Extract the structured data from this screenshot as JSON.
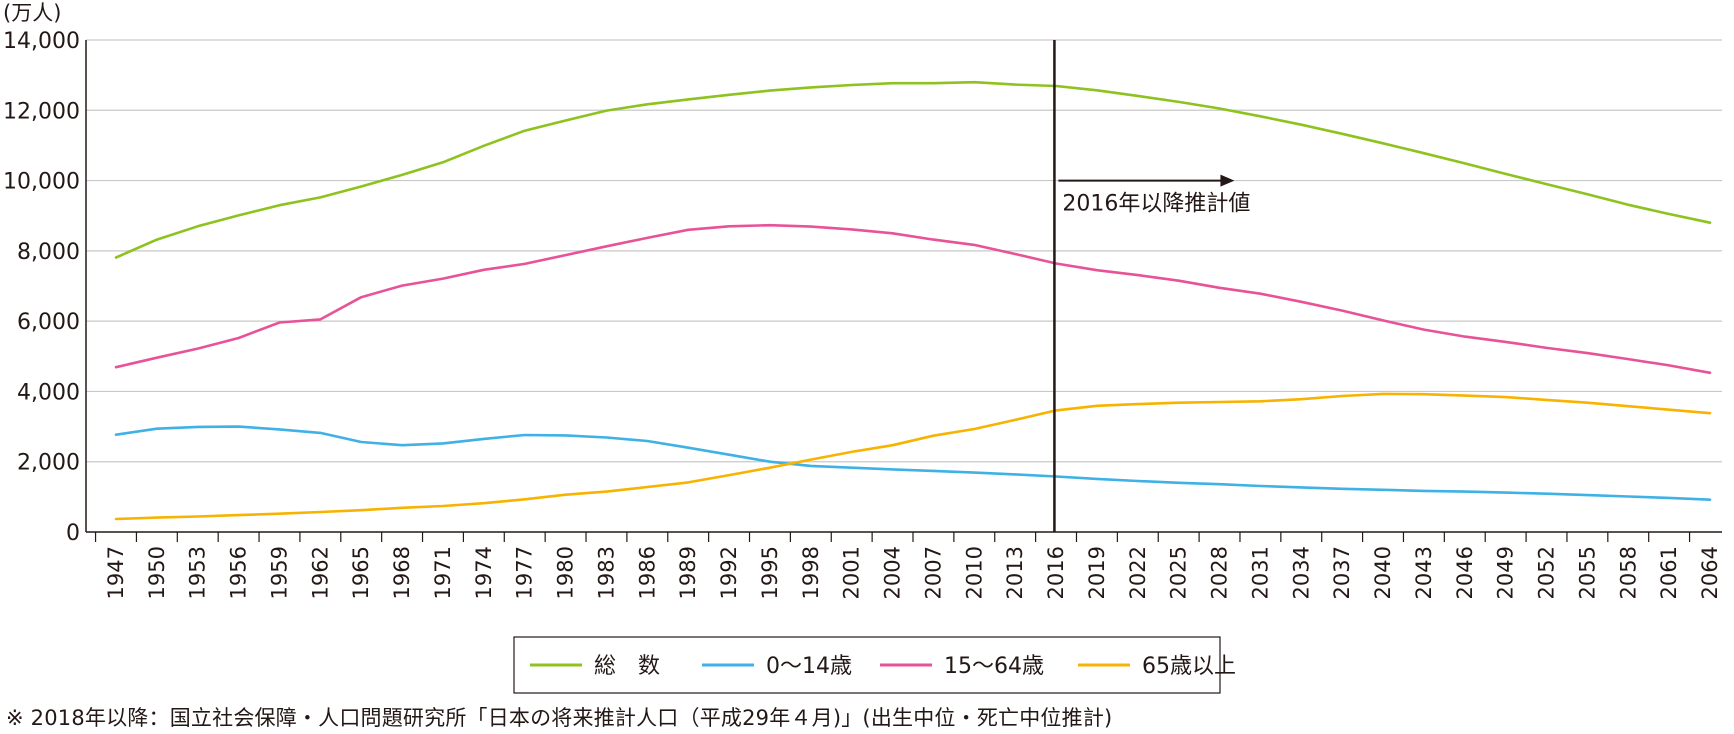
{
  "chart_data": {
    "type": "line",
    "y_unit_label": "(万人)",
    "ylim": [
      0,
      14000
    ],
    "yticks": [
      0,
      2000,
      4000,
      6000,
      8000,
      10000,
      12000,
      14000
    ],
    "ytick_labels": [
      "0",
      "2,000",
      "4,000",
      "6,000",
      "8,000",
      "10,000",
      "12,000",
      "14,000"
    ],
    "xlim": [
      1947,
      2065
    ],
    "xticks": [
      1947,
      1950,
      1953,
      1956,
      1959,
      1962,
      1965,
      1968,
      1971,
      1974,
      1977,
      1980,
      1983,
      1986,
      1989,
      1992,
      1995,
      1998,
      2001,
      2004,
      2007,
      2010,
      2013,
      2016,
      2019,
      2022,
      2025,
      2028,
      2031,
      2034,
      2037,
      2040,
      2043,
      2046,
      2049,
      2052,
      2055,
      2058,
      2061,
      2064
    ],
    "xtick_labels": [
      "1947",
      "1950",
      "1953",
      "1956",
      "1959",
      "1962",
      "1965",
      "1968",
      "1971",
      "1974",
      "1977",
      "1980",
      "1983",
      "1986",
      "1989",
      "1992",
      "1995",
      "1998",
      "2001",
      "2004",
      "2007",
      "2010",
      "2013",
      "2016",
      "2019",
      "2022",
      "2025",
      "2028",
      "2031",
      "2034",
      "2037",
      "2040",
      "2043",
      "2046",
      "2049",
      "2052",
      "2055",
      "2058",
      "2061",
      "2064"
    ],
    "grid": true,
    "legend_position": "bottom-center",
    "projection": {
      "year": 2015,
      "label": "2016年以降推計値"
    },
    "x": [
      1947,
      1950,
      1953,
      1956,
      1959,
      1962,
      1965,
      1968,
      1971,
      1974,
      1977,
      1980,
      1983,
      1986,
      1989,
      1992,
      1995,
      1998,
      2001,
      2004,
      2007,
      2010,
      2013,
      2016,
      2019,
      2022,
      2025,
      2028,
      2031,
      2034,
      2037,
      2040,
      2043,
      2046,
      2049,
      2052,
      2055,
      2058,
      2061,
      2064
    ],
    "series": [
      {
        "name": "総　数",
        "color": "#8dc21f",
        "values": [
          7810,
          8320,
          8700,
          9010,
          9300,
          9520,
          9830,
          10160,
          10520,
          10990,
          11420,
          11710,
          11990,
          12170,
          12310,
          12440,
          12560,
          12650,
          12720,
          12770,
          12770,
          12800,
          12730,
          12690,
          12570,
          12410,
          12240,
          12050,
          11830,
          11590,
          11330,
          11060,
          10780,
          10490,
          10190,
          9900,
          9610,
          9310,
          9050,
          8800
        ]
      },
      {
        "name": "0～14歳",
        "color": "#3fb1e5",
        "values": [
          2770,
          2940,
          2990,
          3000,
          2920,
          2820,
          2560,
          2470,
          2520,
          2650,
          2760,
          2750,
          2690,
          2590,
          2400,
          2200,
          2000,
          1880,
          1830,
          1780,
          1740,
          1690,
          1640,
          1580,
          1510,
          1450,
          1400,
          1360,
          1310,
          1270,
          1230,
          1200,
          1170,
          1150,
          1120,
          1090,
          1050,
          1010,
          970,
          920
        ]
      },
      {
        "name": "15～64歳",
        "color": "#e85298",
        "values": [
          4690,
          4960,
          5220,
          5520,
          5960,
          6050,
          6680,
          7010,
          7210,
          7460,
          7630,
          7880,
          8130,
          8370,
          8600,
          8700,
          8730,
          8690,
          8610,
          8500,
          8320,
          8170,
          7910,
          7640,
          7450,
          7310,
          7150,
          6950,
          6780,
          6550,
          6300,
          6020,
          5760,
          5560,
          5410,
          5240,
          5090,
          4920,
          4740,
          4530
        ]
      },
      {
        "name": "65歳以上",
        "color": "#f7b300",
        "values": [
          370,
          410,
          440,
          480,
          520,
          570,
          620,
          690,
          740,
          820,
          930,
          1060,
          1150,
          1280,
          1410,
          1620,
          1830,
          2060,
          2280,
          2470,
          2740,
          2930,
          3190,
          3460,
          3590,
          3640,
          3680,
          3700,
          3720,
          3780,
          3870,
          3930,
          3920,
          3880,
          3840,
          3760,
          3680,
          3580,
          3480,
          3380
        ]
      }
    ]
  },
  "footnote": "※ 2018年以降：国立社会保障・人口問題研究所「日本の将来推計人口（平成29年４月)」(出生中位・死亡中位推計)"
}
